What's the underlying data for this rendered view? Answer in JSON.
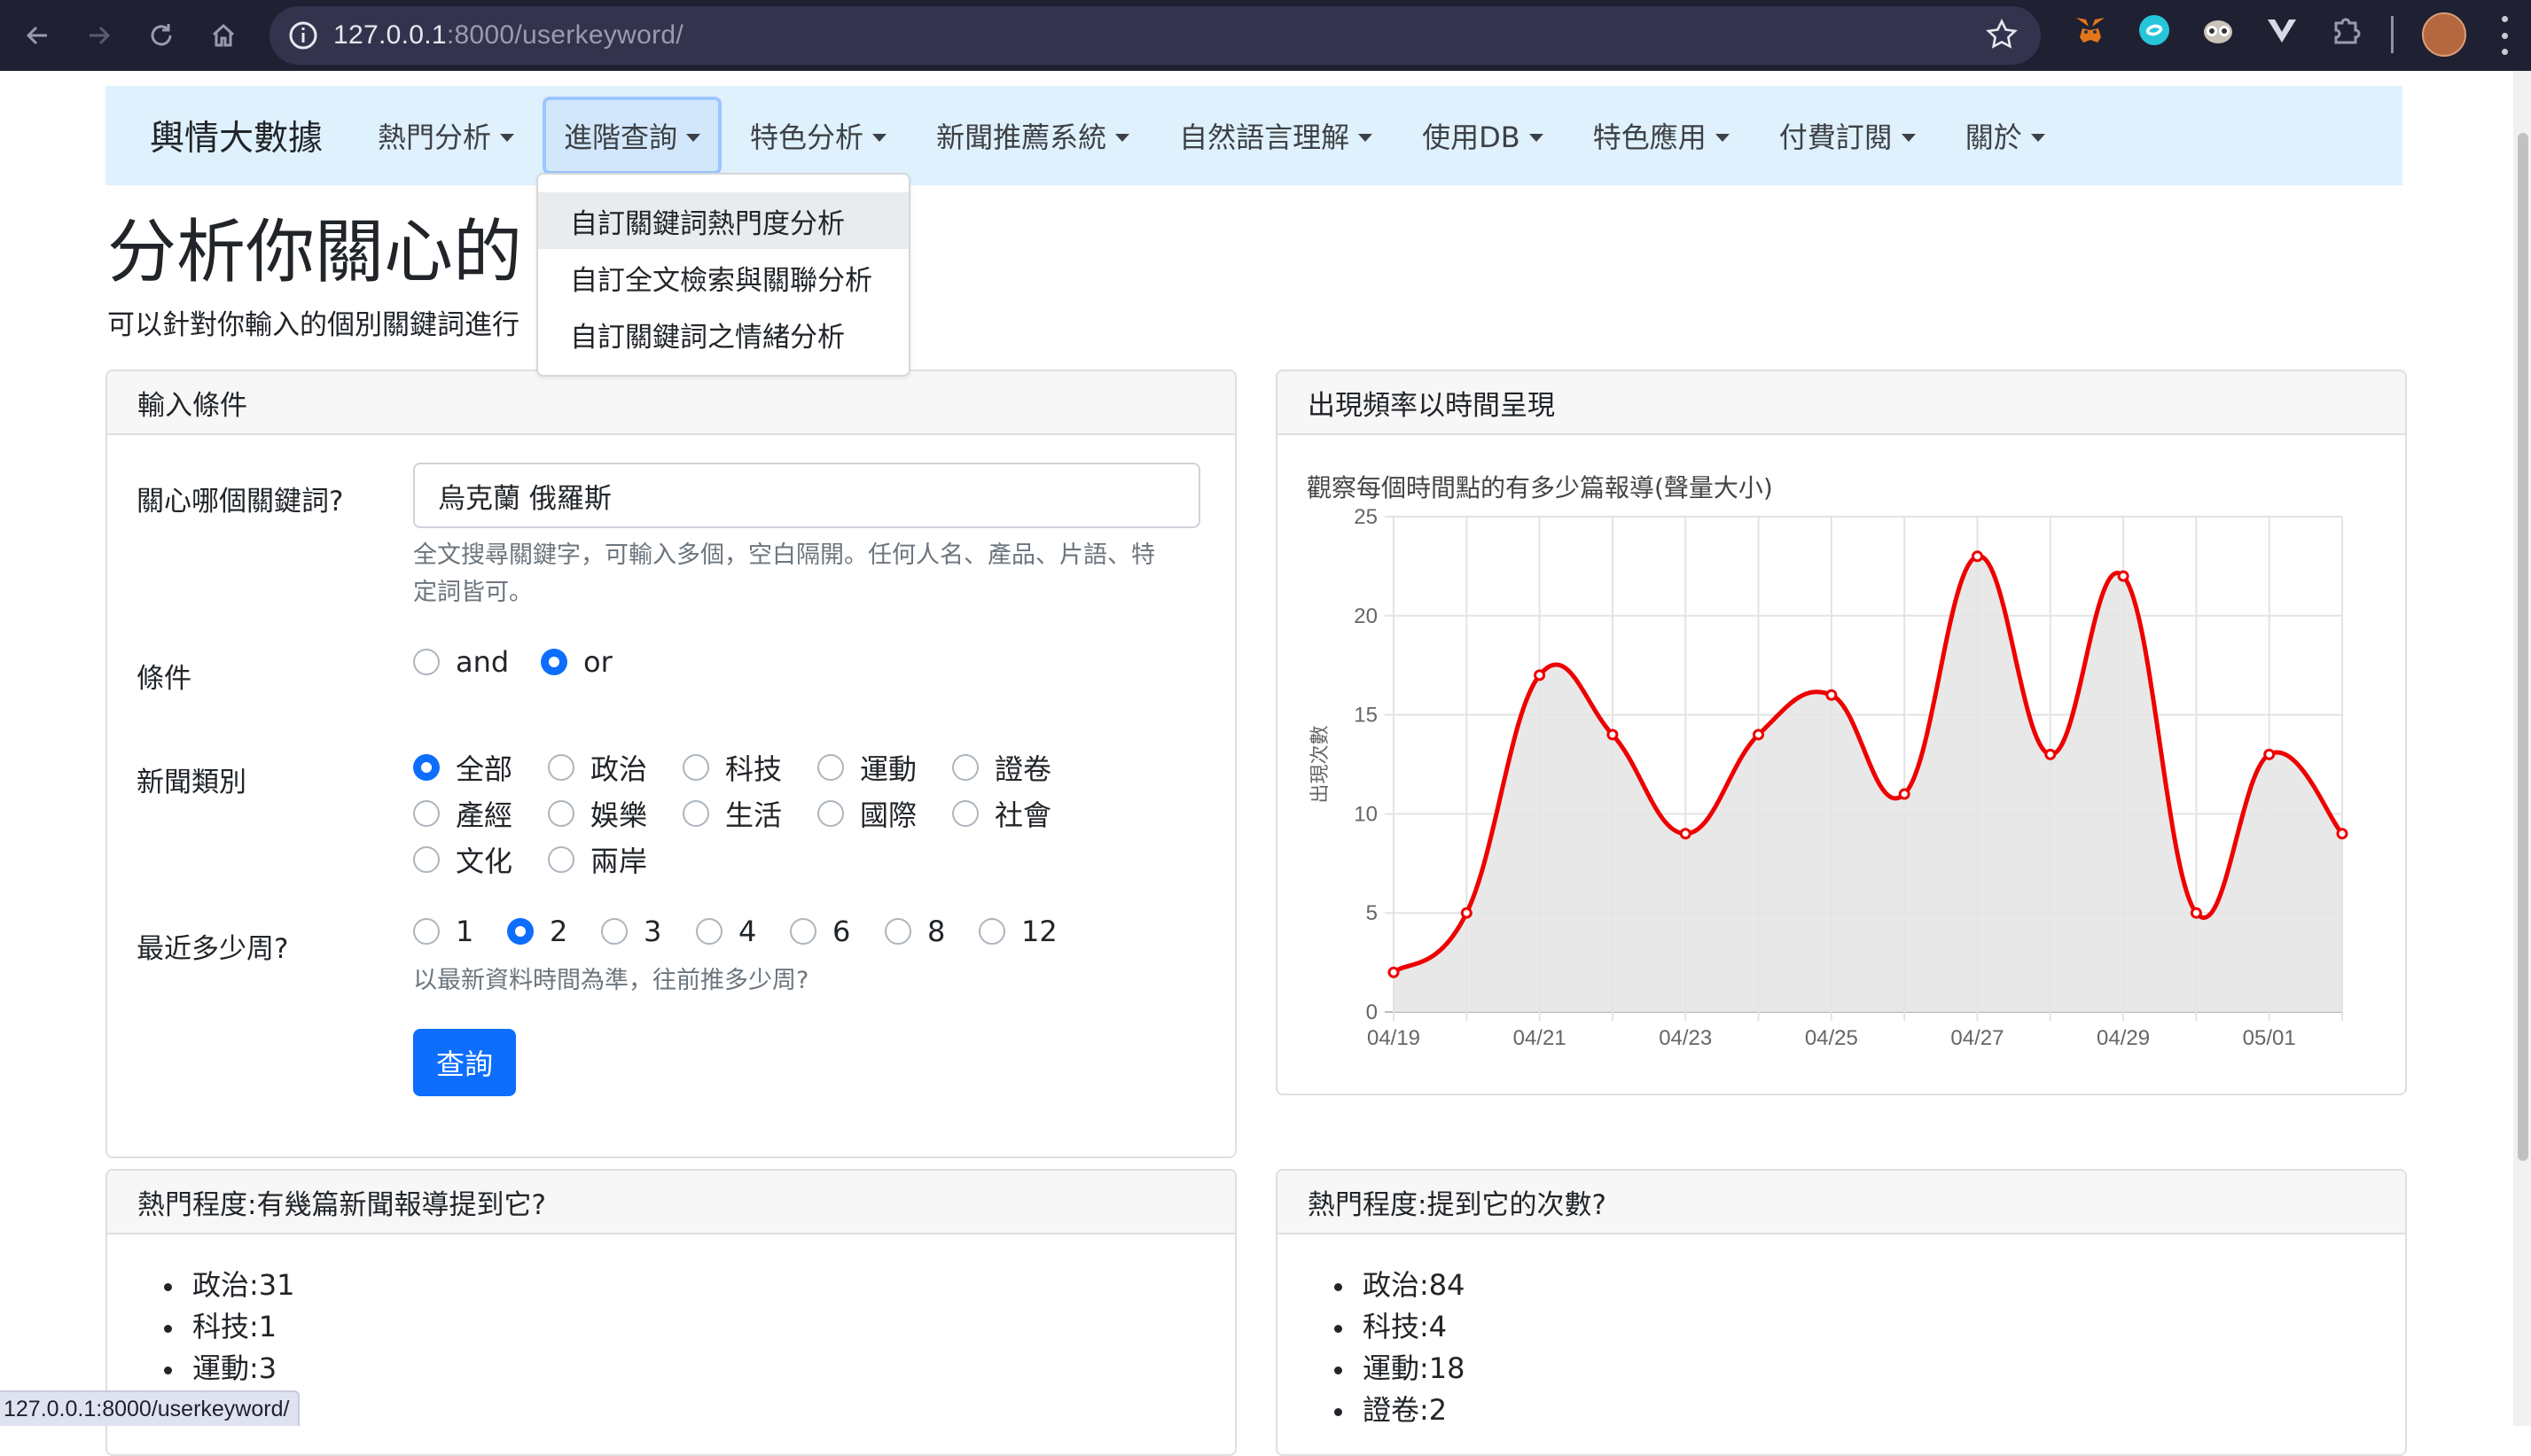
{
  "browser": {
    "url_host": "127.0.0.1",
    "url_rest": ":8000/userkeyword/",
    "status_url": "127.0.0.1:8000/userkeyword/"
  },
  "navbar": {
    "brand": "輿情大數據",
    "items": [
      {
        "label": "熱門分析"
      },
      {
        "label": "進階查詢"
      },
      {
        "label": "特色分析"
      },
      {
        "label": "新聞推薦系統"
      },
      {
        "label": "自然語言理解"
      },
      {
        "label": "使用DB"
      },
      {
        "label": "特色應用"
      },
      {
        "label": "付費訂閱"
      },
      {
        "label": "關於"
      }
    ]
  },
  "dropdown": {
    "items": [
      "自訂關鍵詞熱門度分析",
      "自訂全文檢索與關聯分析",
      "自訂關鍵詞之情緒分析"
    ]
  },
  "page": {
    "title": "分析你關心的",
    "description": "可以針對你輸入的個別關鍵詞進行"
  },
  "form": {
    "header": "輸入條件",
    "keyword_label": "關心哪個關鍵詞?",
    "keyword_value": "烏克蘭 俄羅斯",
    "keyword_help_1": "全文搜尋關鍵字，可輸入多個，空白隔開。任何人名、產品、片語、特",
    "keyword_help_2": "定詞皆可。",
    "condition_label": "條件",
    "conditions": [
      "and",
      "or"
    ],
    "condition_selected": "or",
    "category_label": "新聞類別",
    "categories": [
      "全部",
      "政治",
      "科技",
      "運動",
      "證卷",
      "產經",
      "娛樂",
      "生活",
      "國際",
      "社會",
      "文化",
      "兩岸"
    ],
    "category_selected": "全部",
    "weeks_label": "最近多少周?",
    "weeks": [
      "1",
      "2",
      "3",
      "4",
      "6",
      "8",
      "12"
    ],
    "weeks_selected": "2",
    "weeks_help": "以最新資料時間為準，往前推多少周?",
    "submit_label": "查詢"
  },
  "chart_card": {
    "header": "出現頻率以時間呈現",
    "caption": "觀察每個時間點的有多少篇報導(聲量大小)"
  },
  "chart_data": {
    "type": "area",
    "x": [
      "04/19",
      "04/20",
      "04/21",
      "04/22",
      "04/23",
      "04/24",
      "04/25",
      "04/26",
      "04/27",
      "04/28",
      "04/29",
      "04/30",
      "05/01",
      "05/02"
    ],
    "series": [
      {
        "values": [
          2,
          5,
          17,
          14,
          9,
          14,
          16,
          11,
          23,
          13,
          22,
          5,
          13,
          9
        ]
      }
    ],
    "x_tick_labels": [
      "04/19",
      "04/21",
      "04/23",
      "04/25",
      "04/27",
      "04/29",
      "05/01"
    ],
    "ylabel": "出現次數",
    "ylim": [
      0,
      25
    ],
    "y_ticks": [
      0,
      5,
      10,
      15,
      20,
      25
    ],
    "grid": true,
    "colors": {
      "line": "#ee0000",
      "fill": "#e4e4e4"
    }
  },
  "card_docs": {
    "header": "熱門程度:有幾篇新聞報導提到它?",
    "items": [
      "政治:31",
      "科技:1",
      "運動:3"
    ]
  },
  "card_counts": {
    "header": "熱門程度:提到它的次數?",
    "items": [
      "政治:84",
      "科技:4",
      "運動:18",
      "證卷:2"
    ]
  }
}
